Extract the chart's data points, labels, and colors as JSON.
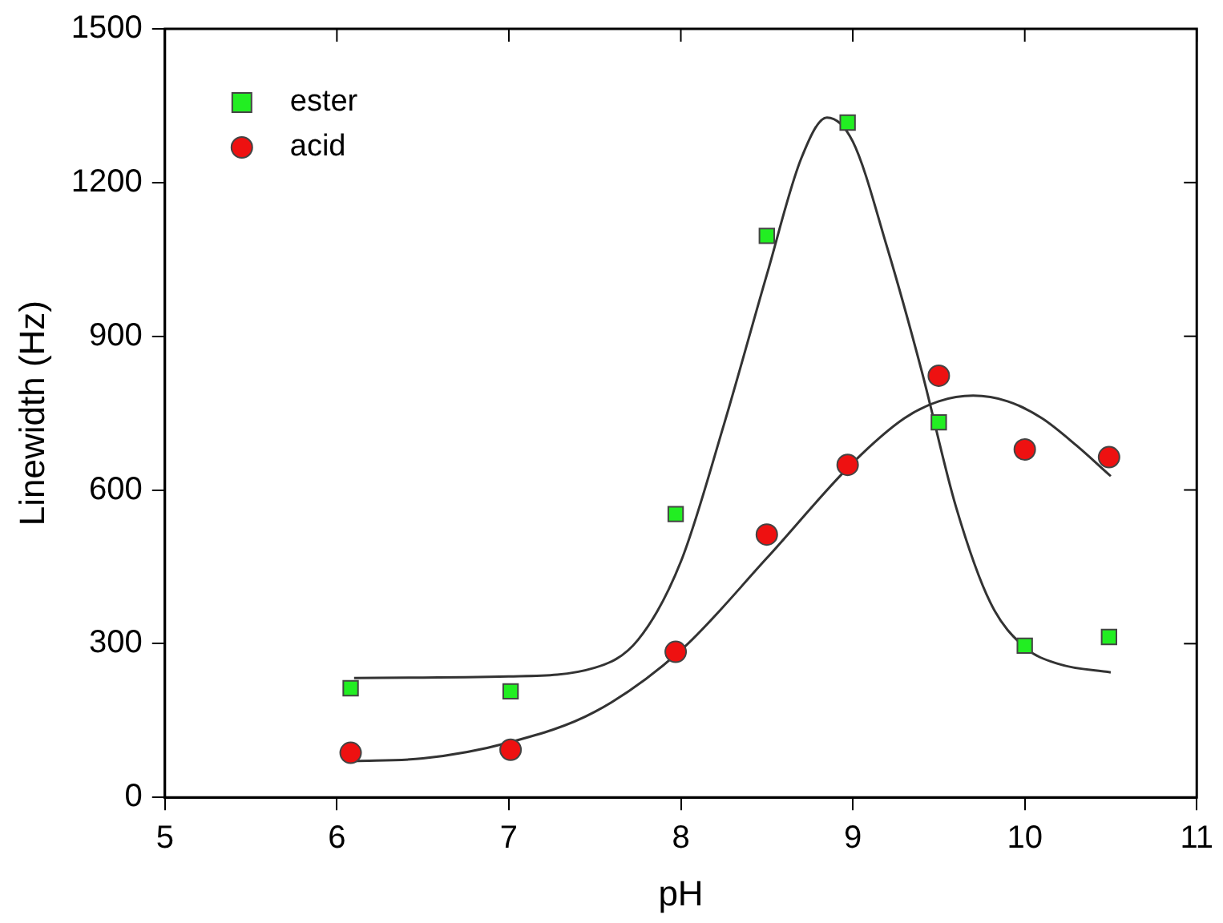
{
  "chart_data": {
    "type": "scatter",
    "xlabel": "pH",
    "ylabel": "Linewidth (Hz)",
    "xlim": [
      5,
      11
    ],
    "xticks": [
      5,
      6,
      7,
      8,
      9,
      10,
      11
    ],
    "ylim": [
      0,
      1500
    ],
    "yticks": [
      0,
      300,
      600,
      900,
      1200,
      1500
    ],
    "grid": false,
    "legend": "top left",
    "x": [
      6.08,
      7.01,
      7.97,
      8.5,
      8.97,
      9.5,
      10.0,
      10.49
    ],
    "series": [
      {
        "name": "ester",
        "color": "#22ee22",
        "marker": "square",
        "values": [
          213,
          207,
          553,
          1096,
          1317,
          732,
          296,
          313
        ]
      },
      {
        "name": "acid",
        "color": "#ee1111",
        "marker": "circle",
        "values": [
          87,
          93,
          284,
          513,
          649,
          823,
          679,
          664
        ]
      },
      {
        "type": "line",
        "color": "#333333",
        "marker": "none",
        "x": [
          6.1,
          7.0,
          7.5,
          7.75,
          8.0,
          8.25,
          8.5,
          8.7,
          8.85,
          9.0,
          9.2,
          9.4,
          9.6,
          9.8,
          10.0,
          10.2,
          10.5
        ],
        "values": [
          233,
          236,
          253,
          307,
          460,
          727,
          1020,
          1247,
          1327,
          1280,
          1073,
          833,
          567,
          380,
          293,
          260,
          244
        ]
      },
      {
        "type": "line",
        "color": "#333333",
        "marker": "none",
        "x": [
          6.1,
          6.5,
          7.0,
          7.5,
          8.0,
          8.5,
          9.0,
          9.3,
          9.5,
          9.7,
          9.9,
          10.1,
          10.3,
          10.5
        ],
        "values": [
          71,
          76,
          107,
          167,
          287,
          467,
          653,
          740,
          773,
          784,
          773,
          740,
          687,
          627
        ]
      }
    ]
  }
}
